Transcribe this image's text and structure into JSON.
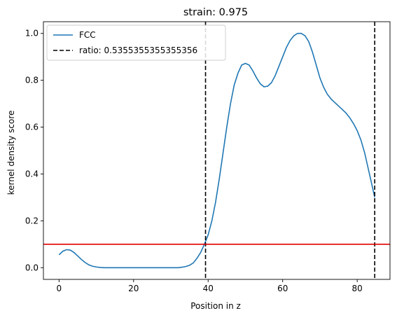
{
  "chart_data": {
    "type": "line",
    "title": "strain: 0.975",
    "xlabel": "Position in z",
    "ylabel": "kernel density score",
    "xlim": [
      -4.2,
      88.8
    ],
    "ylim": [
      -0.05,
      1.05
    ],
    "xticks": [
      0,
      20,
      40,
      60,
      80
    ],
    "yticks": [
      0.0,
      0.2,
      0.4,
      0.6,
      0.8,
      1.0
    ],
    "xtick_labels": [
      "0",
      "20",
      "40",
      "60",
      "80"
    ],
    "ytick_labels": [
      "0.0",
      "0.2",
      "0.4",
      "0.6",
      "0.8",
      "1.0"
    ],
    "grid": false,
    "legend_position": "top-left",
    "series": [
      {
        "name": "FCC",
        "color": "#1f77b4",
        "style": "solid",
        "x": [
          0,
          1,
          2,
          3,
          4,
          5,
          6,
          7,
          8,
          9,
          10,
          11,
          12,
          14,
          16,
          18,
          20,
          22,
          24,
          26,
          28,
          30,
          32,
          33,
          34,
          35,
          36,
          37,
          38,
          39,
          40,
          41,
          42,
          43,
          44,
          45,
          46,
          47,
          48,
          49,
          50,
          51,
          52,
          53,
          54,
          55,
          56,
          57,
          58,
          59,
          60,
          61,
          62,
          63,
          64,
          65,
          66,
          67,
          68,
          69,
          70,
          71,
          72,
          73,
          74,
          75,
          76,
          77,
          78,
          79,
          80,
          81,
          82,
          83,
          84,
          84.7
        ],
        "y": [
          0.055,
          0.07,
          0.077,
          0.075,
          0.065,
          0.05,
          0.035,
          0.022,
          0.012,
          0.006,
          0.003,
          0.001,
          0.0,
          0.0,
          0.0,
          0.0,
          0.0,
          0.0,
          0.0,
          0.0,
          0.0,
          0.0,
          0.0,
          0.002,
          0.005,
          0.01,
          0.02,
          0.04,
          0.065,
          0.1,
          0.14,
          0.2,
          0.28,
          0.38,
          0.49,
          0.6,
          0.7,
          0.78,
          0.83,
          0.865,
          0.872,
          0.865,
          0.84,
          0.81,
          0.785,
          0.772,
          0.775,
          0.79,
          0.82,
          0.86,
          0.9,
          0.94,
          0.97,
          0.99,
          1.0,
          1.0,
          0.99,
          0.965,
          0.92,
          0.865,
          0.81,
          0.77,
          0.74,
          0.72,
          0.705,
          0.69,
          0.675,
          0.66,
          0.64,
          0.615,
          0.585,
          0.545,
          0.49,
          0.42,
          0.35,
          0.3
        ]
      }
    ],
    "vlines": [
      {
        "name": "ratio: 0.5355355355355356",
        "x": 39.3,
        "color": "#000000",
        "style": "dashed",
        "in_legend": true
      },
      {
        "x": 84.7,
        "color": "#000000",
        "style": "dashed",
        "in_legend": false
      }
    ],
    "hlines": [
      {
        "y": 0.1,
        "color": "#e00000",
        "style": "solid"
      }
    ],
    "legend": [
      {
        "label": "FCC",
        "color": "#1f77b4",
        "style": "solid"
      },
      {
        "label": "ratio: 0.5355355355355356",
        "color": "#000000",
        "style": "dashed"
      }
    ]
  }
}
